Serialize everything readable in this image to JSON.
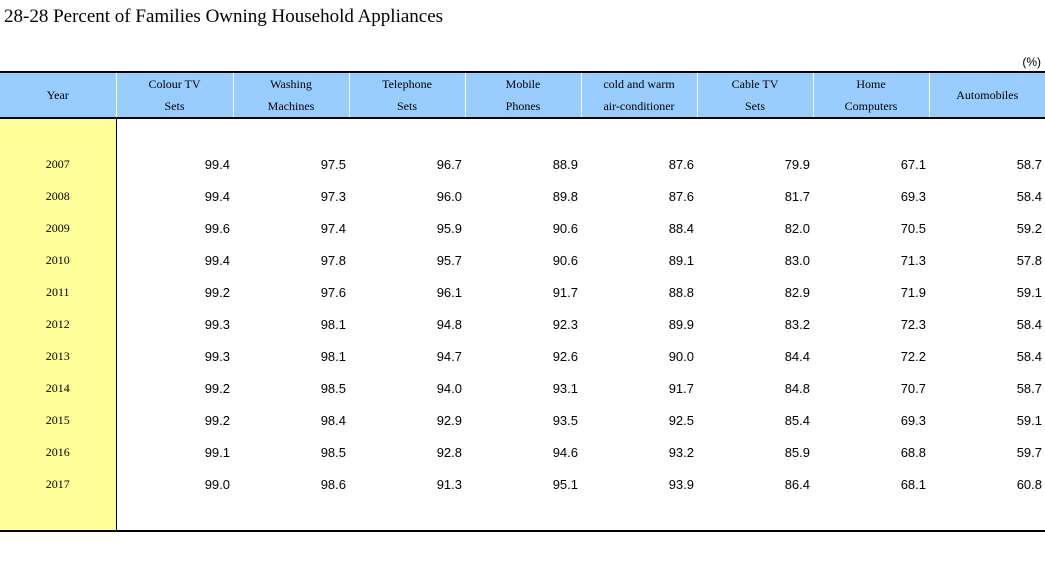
{
  "title": "28-28  Percent of Families Owning Household Appliances",
  "unit": "(%)",
  "columns": [
    {
      "line1": "Year",
      "line2": ""
    },
    {
      "line1": "Colour TV",
      "line2": "Sets"
    },
    {
      "line1": "Washing",
      "line2": "Machines"
    },
    {
      "line1": "Telephone",
      "line2": "Sets"
    },
    {
      "line1": "Mobile",
      "line2": "Phones"
    },
    {
      "line1": "cold and warm",
      "line2": "air-conditioner"
    },
    {
      "line1": "Cable TV",
      "line2": "Sets"
    },
    {
      "line1": "Home",
      "line2": "Computers"
    },
    {
      "line1": "Automobiles",
      "line2": ""
    }
  ],
  "rows": [
    {
      "year": "2007",
      "values": [
        "99.4",
        "97.5",
        "96.7",
        "88.9",
        "87.6",
        "79.9",
        "67.1",
        "58.7"
      ]
    },
    {
      "year": "2008",
      "values": [
        "99.4",
        "97.3",
        "96.0",
        "89.8",
        "87.6",
        "81.7",
        "69.3",
        "58.4"
      ]
    },
    {
      "year": "2009",
      "values": [
        "99.6",
        "97.4",
        "95.9",
        "90.6",
        "88.4",
        "82.0",
        "70.5",
        "59.2"
      ]
    },
    {
      "year": "2010",
      "values": [
        "99.4",
        "97.8",
        "95.7",
        "90.6",
        "89.1",
        "83.0",
        "71.3",
        "57.8"
      ]
    },
    {
      "year": "2011",
      "values": [
        "99.2",
        "97.6",
        "96.1",
        "91.7",
        "88.8",
        "82.9",
        "71.9",
        "59.1"
      ]
    },
    {
      "year": "2012",
      "values": [
        "99.3",
        "98.1",
        "94.8",
        "92.3",
        "89.9",
        "83.2",
        "72.3",
        "58.4"
      ]
    },
    {
      "year": "2013",
      "values": [
        "99.3",
        "98.1",
        "94.7",
        "92.6",
        "90.0",
        "84.4",
        "72.2",
        "58.4"
      ]
    },
    {
      "year": "2014",
      "values": [
        "99.2",
        "98.5",
        "94.0",
        "93.1",
        "91.7",
        "84.8",
        "70.7",
        "58.7"
      ]
    },
    {
      "year": "2015",
      "values": [
        "99.2",
        "98.4",
        "92.9",
        "93.5",
        "92.5",
        "85.4",
        "69.3",
        "59.1"
      ]
    },
    {
      "year": "2016",
      "values": [
        "99.1",
        "98.5",
        "92.8",
        "94.6",
        "93.2",
        "85.9",
        "68.8",
        "59.7"
      ]
    },
    {
      "year": "2017",
      "values": [
        "99.0",
        "98.6",
        "91.3",
        "95.1",
        "93.9",
        "86.4",
        "68.1",
        "60.8"
      ]
    }
  ]
}
